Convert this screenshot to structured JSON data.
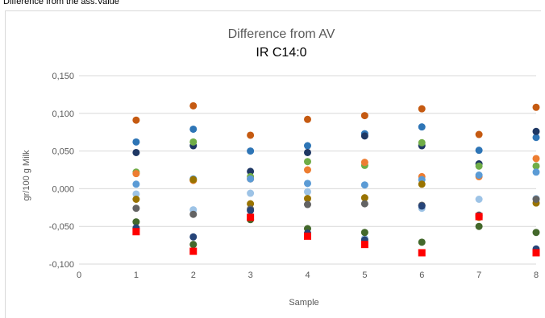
{
  "header": {
    "label": "Difference from the ass.Value"
  },
  "chart_data": {
    "type": "scatter",
    "title": "Difference from AV",
    "subtitle": "IR C14:0",
    "xlabel": "Sample",
    "ylabel": "gr/100 g Milk",
    "xlim": [
      0,
      8
    ],
    "ylim": [
      -0.1,
      0.15
    ],
    "x_ticks": [
      "0",
      "1",
      "2",
      "3",
      "4",
      "5",
      "6",
      "7",
      "8"
    ],
    "y_ticks": [
      "-0,100",
      "-0,050",
      "0,000",
      "0,050",
      "0,100",
      "0,150"
    ],
    "grid": "horizontal",
    "x": [
      1,
      2,
      3,
      4,
      5,
      6,
      7,
      8
    ],
    "series": [
      {
        "color": "#c55a11",
        "marker": "circle",
        "values": [
          0.091,
          0.11,
          0.071,
          0.092,
          0.097,
          0.106,
          0.072,
          0.108
        ]
      },
      {
        "color": "#2e75b6",
        "marker": "circle",
        "values": [
          0.062,
          0.079,
          0.05,
          0.057,
          0.073,
          0.082,
          0.051,
          0.068
        ]
      },
      {
        "color": "#1f3864",
        "marker": "circle",
        "values": [
          0.048,
          0.057,
          0.023,
          0.048,
          0.07,
          0.057,
          0.033,
          0.076
        ]
      },
      {
        "color": "#70ad47",
        "marker": "circle",
        "values": [
          0.022,
          0.062,
          0.016,
          0.036,
          0.031,
          0.061,
          0.03,
          0.03
        ]
      },
      {
        "color": "#ed7d31",
        "marker": "circle",
        "values": [
          0.02,
          0.011,
          0.013,
          0.025,
          0.035,
          0.016,
          0.016,
          0.04
        ]
      },
      {
        "color": "#5b9bd5",
        "marker": "circle",
        "values": [
          0.006,
          0.013,
          0.013,
          0.007,
          0.005,
          0.012,
          0.018,
          0.022
        ]
      },
      {
        "color": "#9dc3e6",
        "marker": "circle",
        "values": [
          -0.007,
          -0.028,
          -0.006,
          -0.004,
          -0.066,
          -0.026,
          -0.014,
          -0.013
        ]
      },
      {
        "color": "#997300",
        "marker": "circle",
        "values": [
          -0.014,
          0.012,
          -0.02,
          -0.013,
          -0.012,
          0.006,
          -0.038,
          -0.019
        ]
      },
      {
        "color": "#636363",
        "marker": "circle",
        "values": [
          -0.026,
          -0.034,
          -0.027,
          -0.021,
          -0.02,
          -0.022,
          -0.035,
          -0.014
        ]
      },
      {
        "color": "#43682b",
        "marker": "circle",
        "values": [
          -0.044,
          -0.074,
          -0.041,
          -0.053,
          -0.058,
          -0.071,
          -0.05,
          -0.058
        ]
      },
      {
        "color": "#264478",
        "marker": "circle",
        "values": [
          -0.052,
          -0.064,
          -0.029,
          -0.059,
          -0.068,
          -0.023,
          -0.036,
          -0.08
        ]
      },
      {
        "color": "#ff0000",
        "marker": "square",
        "values": [
          -0.057,
          -0.083,
          -0.038,
          -0.063,
          -0.074,
          -0.085,
          -0.037,
          -0.085
        ]
      }
    ]
  }
}
